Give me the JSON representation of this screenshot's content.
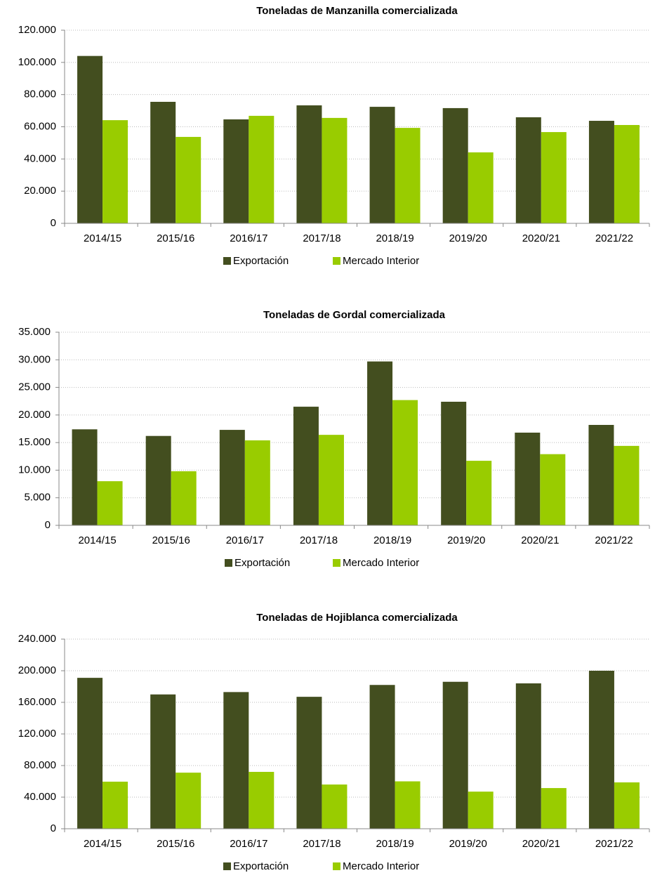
{
  "chart_data": [
    {
      "type": "bar",
      "title": "Toneladas  de  Manzanilla  comercializada",
      "categories": [
        "2014/15",
        "2015/16",
        "2016/17",
        "2017/18",
        "2018/19",
        "2019/20",
        "2020/21",
        "2021/22"
      ],
      "series": [
        {
          "name": "Exportación",
          "color": "#434e1f",
          "values": [
            104000,
            75500,
            64600,
            73300,
            72400,
            71600,
            65900,
            63700
          ]
        },
        {
          "name": "Mercado Interior",
          "color": "#99cc00",
          "values": [
            64100,
            53700,
            66800,
            65500,
            59300,
            44100,
            56700,
            61100
          ]
        }
      ],
      "ylim": [
        0,
        120000
      ],
      "yticks": [
        0,
        {
          "value": 20000,
          "label": "20.000"
        },
        {
          "value": 40000,
          "label": "40.000"
        },
        {
          "value": 60000,
          "label": "60.000"
        },
        {
          "value": 80000,
          "label": "80.000"
        },
        {
          "value": 100000,
          "label": "100.000"
        },
        {
          "value": 120000,
          "label": "120.000"
        }
      ],
      "grid": true,
      "legend": "bottom"
    },
    {
      "type": "bar",
      "title": "Toneladas  de  Gordal  comercializada",
      "categories": [
        "2014/15",
        "2015/16",
        "2016/17",
        "2017/18",
        "2018/19",
        "2019/20",
        "2020/21",
        "2021/22"
      ],
      "series": [
        {
          "name": "Exportación",
          "color": "#434e1f",
          "values": [
            17400,
            16200,
            17300,
            21500,
            29700,
            22400,
            16800,
            18200
          ]
        },
        {
          "name": "Mercado Interior",
          "color": "#99cc00",
          "values": [
            8000,
            9800,
            15400,
            16400,
            22700,
            11700,
            12900,
            14400
          ]
        }
      ],
      "ylim": [
        0,
        35000
      ],
      "yticks": [
        0,
        {
          "value": 5000,
          "label": "5.000"
        },
        {
          "value": 10000,
          "label": "10.000"
        },
        {
          "value": 15000,
          "label": "15.000"
        },
        {
          "value": 20000,
          "label": "20.000"
        },
        {
          "value": 25000,
          "label": "25.000"
        },
        {
          "value": 30000,
          "label": "30.000"
        },
        {
          "value": 35000,
          "label": "35.000"
        }
      ],
      "grid": true,
      "legend": "bottom"
    },
    {
      "type": "bar",
      "title": "Toneladas  de  Hojiblanca  comercializada",
      "categories": [
        "2014/15",
        "2015/16",
        "2016/17",
        "2017/18",
        "2018/19",
        "2019/20",
        "2020/21",
        "2021/22"
      ],
      "series": [
        {
          "name": "Exportación",
          "color": "#434e1f",
          "values": [
            191000,
            170000,
            173000,
            167000,
            182000,
            186000,
            184000,
            200000
          ]
        },
        {
          "name": "Mercado Interior",
          "color": "#99cc00",
          "values": [
            59600,
            71000,
            72000,
            56000,
            60000,
            47000,
            51500,
            58700
          ]
        }
      ],
      "ylim": [
        0,
        240000
      ],
      "yticks": [
        0,
        {
          "value": 40000,
          "label": "40.000"
        },
        {
          "value": 80000,
          "label": "80.000"
        },
        {
          "value": 120000,
          "label": "120.000"
        },
        {
          "value": 160000,
          "label": "160.000"
        },
        {
          "value": 200000,
          "label": "200.000"
        },
        {
          "value": 240000,
          "label": "240.000"
        }
      ],
      "grid": true,
      "legend": "bottom"
    }
  ]
}
